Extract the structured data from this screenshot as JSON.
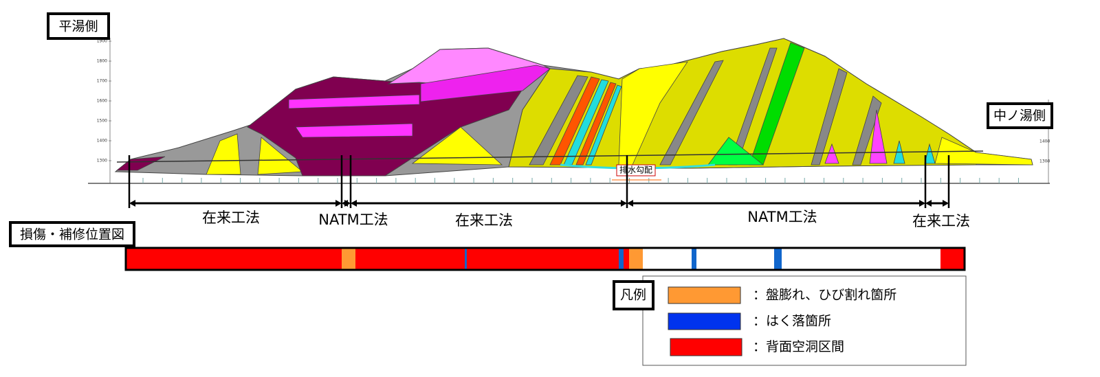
{
  "side_left": "平湯側",
  "side_right": "中ノ湯側",
  "elevations_left": [
    "1900",
    "1800",
    "1700",
    "1600",
    "1500",
    "1400",
    "1300"
  ],
  "elevations_right": [
    "1400",
    "1300"
  ],
  "drainage_label": "排水勾配",
  "methods": [
    "在来工法",
    "NATM工法",
    "在来工法",
    "NATM工法",
    "在来工法"
  ],
  "damage_map_title": "損傷・補修位置図",
  "legend": {
    "title": "凡例",
    "items": [
      "：盤膨れ、ひび割れ箇所",
      "：はく落箇所",
      "：背面空洞区間"
    ]
  }
}
